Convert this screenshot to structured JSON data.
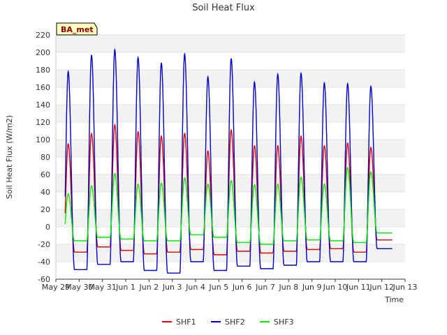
{
  "chart_data": {
    "type": "line",
    "title": "Soil Heat Flux",
    "xlabel": "Time",
    "ylabel": "Soil Heat Flux (W/m2)",
    "ylim": [
      -60,
      220
    ],
    "yticks": [
      -60,
      -40,
      -20,
      0,
      20,
      40,
      60,
      80,
      100,
      120,
      140,
      160,
      180,
      200,
      220
    ],
    "xlim": [
      0,
      15
    ],
    "xticks": [
      {
        "x": 0,
        "label": "May 29"
      },
      {
        "x": 1,
        "label": "May 30"
      },
      {
        "x": 2,
        "label": "May 31"
      },
      {
        "x": 3,
        "label": "Jun 1"
      },
      {
        "x": 4,
        "label": "Jun 2"
      },
      {
        "x": 5,
        "label": "Jun 3"
      },
      {
        "x": 6,
        "label": "Jun 4"
      },
      {
        "x": 7,
        "label": "Jun 5"
      },
      {
        "x": 8,
        "label": "Jun 6"
      },
      {
        "x": 9,
        "label": "Jun 7"
      },
      {
        "x": 10,
        "label": "Jun 8"
      },
      {
        "x": 11,
        "label": "Jun 9"
      },
      {
        "x": 12,
        "label": "Jun 10"
      },
      {
        "x": 13,
        "label": "Jun 11"
      },
      {
        "x": 14,
        "label": "Jun 12"
      },
      {
        "x": 15,
        "label": "Jun 13"
      }
    ],
    "badge": "BA_met",
    "series_note": "x = days since May 29 00:00; daily peaks near 12:45",
    "series": [
      {
        "name": "SHF1",
        "color": "#dd0000",
        "peaks": [
          95,
          107,
          117,
          109,
          104,
          107,
          87,
          111,
          93,
          93,
          104,
          93,
          96,
          91
        ],
        "mins": [
          -28,
          -29,
          -23,
          -27,
          -31,
          -29,
          -26,
          -32,
          -28,
          -30,
          -28,
          -26,
          -25,
          -29,
          -15
        ]
      },
      {
        "name": "SHF2",
        "color": "#0000cc",
        "peaks": [
          178,
          197,
          203,
          194,
          188,
          198,
          172,
          193,
          166,
          175,
          176,
          165,
          164,
          161
        ],
        "mins": [
          -44,
          -49,
          -43,
          -40,
          -50,
          -53,
          -40,
          -50,
          -45,
          -48,
          -44,
          -40,
          -40,
          -40,
          -25
        ]
      },
      {
        "name": "SHF3",
        "color": "#00ee00",
        "peaks": [
          38,
          47,
          61,
          49,
          50,
          56,
          49,
          53,
          48,
          49,
          57,
          49,
          68,
          63
        ],
        "mins": [
          -16,
          -16,
          -12,
          -14,
          -16,
          -16,
          -9,
          -12,
          -18,
          -20,
          -16,
          -15,
          -16,
          -18,
          -7
        ]
      }
    ]
  }
}
